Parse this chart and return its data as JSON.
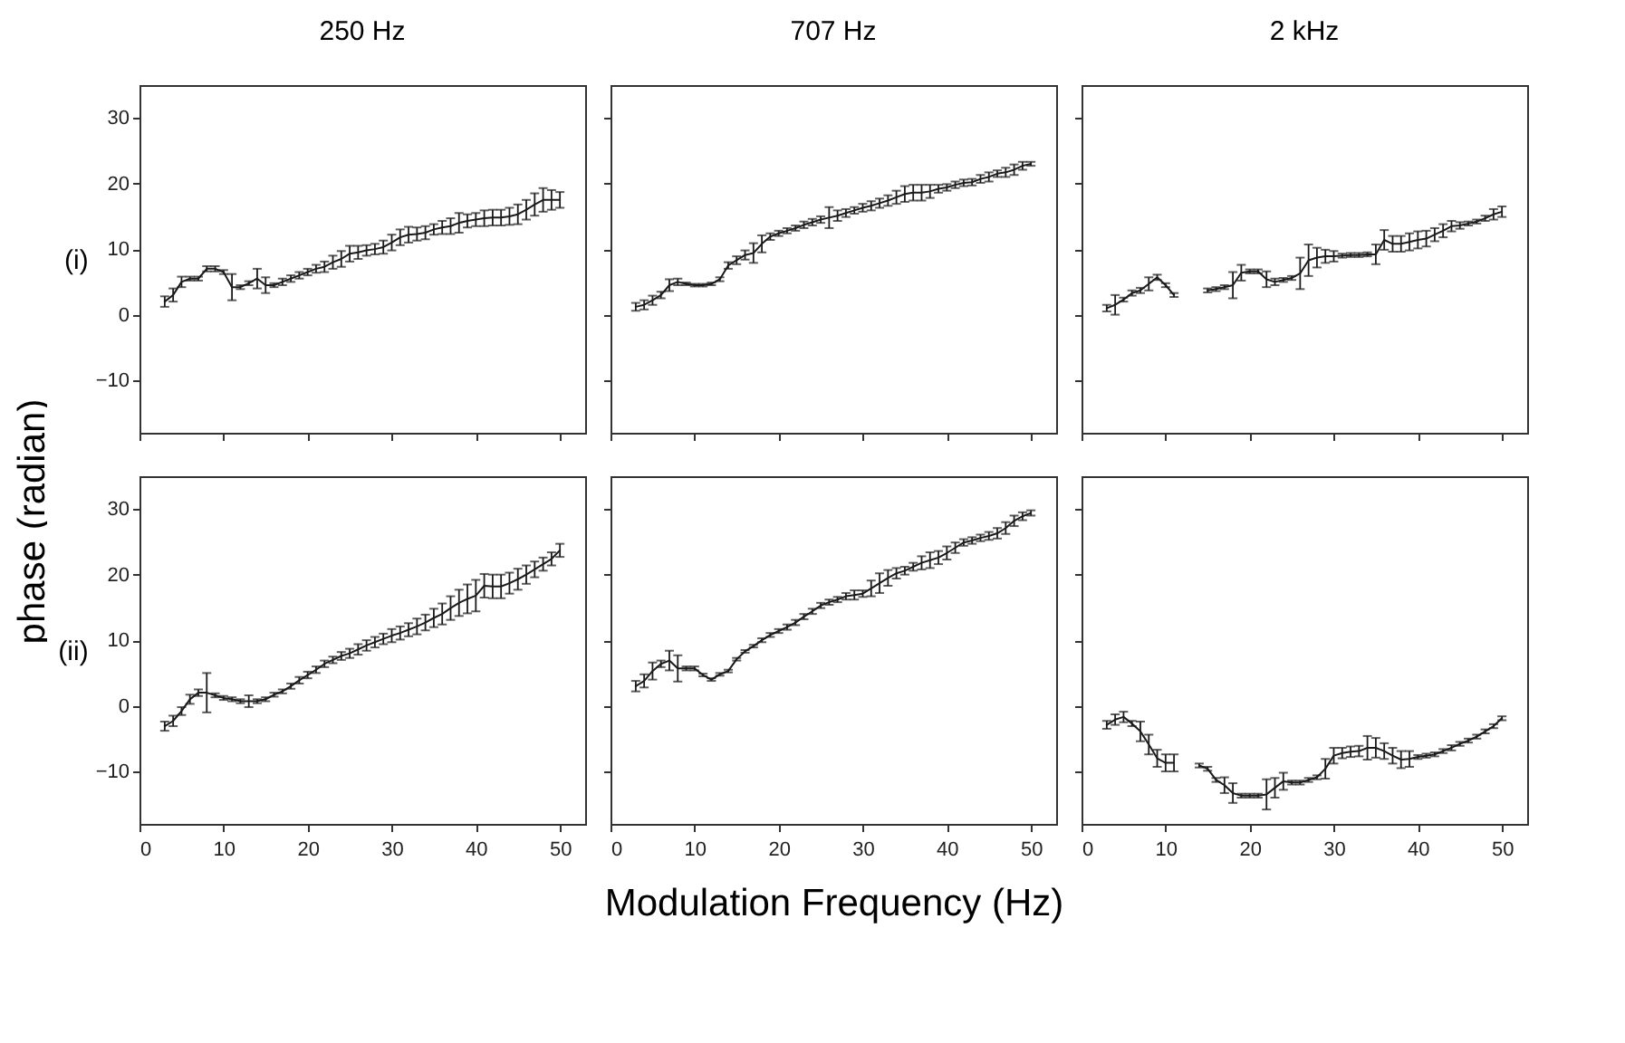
{
  "chart_data": [
    {
      "type": "line",
      "title": "250 Hz",
      "ylabel": "phase (radian)",
      "annotations": [
        "(i)"
      ],
      "color": "#1a1a1a",
      "grid": false,
      "tick_labels": "y",
      "xlim": [
        0,
        53
      ],
      "ylim": [
        -18,
        35
      ],
      "xticks": [
        0,
        10,
        20,
        30,
        40,
        50
      ],
      "yticks": [
        -10,
        0,
        10,
        20,
        30
      ],
      "x": [
        3,
        4,
        5,
        6,
        7,
        8,
        9,
        10,
        11,
        12,
        13,
        14,
        15,
        16,
        17,
        18,
        19,
        20,
        21,
        22,
        23,
        24,
        25,
        26,
        27,
        28,
        29,
        30,
        31,
        32,
        33,
        34,
        35,
        36,
        37,
        38,
        39,
        40,
        41,
        42,
        43,
        44,
        45,
        46,
        47,
        48,
        49,
        50
      ],
      "values": [
        2,
        3,
        5,
        5.5,
        5.5,
        7,
        7,
        6.5,
        4.2,
        4.2,
        4.8,
        5.5,
        4.5,
        4.5,
        5,
        5.5,
        6,
        6.5,
        7,
        7.3,
        8,
        8.5,
        9.3,
        9.5,
        9.8,
        10,
        10.3,
        11,
        11.8,
        12.2,
        12.3,
        12.5,
        13,
        13.3,
        13.5,
        14,
        14.3,
        14.5,
        14.7,
        14.8,
        14.8,
        15,
        15.3,
        16,
        16.8,
        17.5,
        17.5,
        17.5
      ],
      "errors": [
        0.8,
        1,
        0.8,
        0.3,
        0.3,
        0.4,
        0.4,
        0.3,
        2,
        0.3,
        0.3,
        1.5,
        1.2,
        0.3,
        0.5,
        0.5,
        0.5,
        0.5,
        0.6,
        0.8,
        1,
        1.2,
        1.2,
        1,
        0.8,
        0.8,
        1,
        1.2,
        1.2,
        1.2,
        1,
        1,
        0.8,
        1,
        1.2,
        1.5,
        1,
        1,
        1.2,
        1.2,
        1.2,
        1.3,
        1.5,
        1.5,
        1.7,
        1.8,
        1.5,
        1.2
      ]
    },
    {
      "type": "line",
      "title": "707 Hz",
      "color": "#1a1a1a",
      "grid": false,
      "tick_labels": false,
      "xlim": [
        0,
        53
      ],
      "ylim": [
        -18,
        35
      ],
      "xticks": [
        0,
        10,
        20,
        30,
        40,
        50
      ],
      "yticks": [
        -10,
        0,
        10,
        20,
        30
      ],
      "x": [
        3,
        4,
        5,
        6,
        7,
        8,
        9,
        10,
        11,
        12,
        13,
        14,
        15,
        16,
        17,
        18,
        19,
        20,
        21,
        22,
        23,
        24,
        25,
        26,
        27,
        28,
        29,
        30,
        31,
        32,
        33,
        34,
        35,
        36,
        37,
        38,
        39,
        40,
        41,
        42,
        43,
        44,
        45,
        46,
        47,
        48,
        49,
        50
      ],
      "values": [
        1.2,
        1.5,
        2.2,
        3,
        4.5,
        5,
        4.7,
        4.5,
        4.5,
        4.7,
        5.4,
        7.5,
        8.3,
        9.1,
        9.4,
        10.8,
        11.9,
        12.4,
        12.8,
        13.2,
        13.7,
        14.1,
        14.5,
        14.8,
        15.1,
        15.5,
        15.9,
        16.3,
        16.6,
        17,
        17.4,
        17.9,
        18.4,
        18.6,
        18.6,
        18.8,
        19.2,
        19.4,
        19.8,
        20.1,
        20.2,
        20.7,
        21,
        21.5,
        21.7,
        22.1,
        22.7,
        23
      ],
      "errors": [
        0.6,
        0.7,
        0.7,
        0.5,
        0.9,
        0.5,
        0.2,
        0.2,
        0.2,
        0.2,
        0.3,
        0.5,
        0.6,
        0.7,
        1.5,
        1.3,
        0.5,
        0.4,
        0.4,
        0.4,
        0.5,
        0.5,
        0.5,
        1.6,
        0.8,
        0.6,
        0.5,
        0.6,
        0.7,
        0.7,
        0.8,
        1,
        1.2,
        1.2,
        1.2,
        1,
        0.6,
        0.5,
        0.5,
        0.5,
        0.5,
        0.6,
        0.7,
        0.5,
        0.7,
        0.8,
        0.6,
        0.3
      ]
    },
    {
      "type": "line",
      "title": "2 kHz",
      "color": "#1a1a1a",
      "grid": false,
      "tick_labels": false,
      "xlim": [
        0,
        53
      ],
      "ylim": [
        -18,
        35
      ],
      "xticks": [
        0,
        10,
        20,
        30,
        40,
        50
      ],
      "yticks": [
        -10,
        0,
        10,
        20,
        30
      ],
      "x": [
        3,
        4,
        5,
        6,
        7,
        8,
        9,
        10,
        11,
        12,
        13,
        14,
        15,
        16,
        17,
        18,
        19,
        20,
        21,
        22,
        23,
        24,
        25,
        26,
        27,
        28,
        29,
        30,
        31,
        32,
        33,
        34,
        35,
        36,
        37,
        38,
        39,
        40,
        41,
        42,
        43,
        44,
        45,
        46,
        47,
        48,
        49,
        50
      ],
      "values": [
        1,
        1.5,
        2.3,
        3.3,
        3.7,
        4.7,
        5.7,
        4.5,
        3,
        null,
        null,
        null,
        3.7,
        3.9,
        4.2,
        4.5,
        6.4,
        6.6,
        6.6,
        5.4,
        5,
        5.3,
        5.6,
        6.3,
        8.3,
        8.7,
        8.9,
        8.9,
        9,
        9.1,
        9.1,
        9.2,
        9.2,
        11.4,
        10.8,
        10.8,
        11.1,
        11.4,
        11.6,
        12.2,
        12.8,
        13.5,
        13.6,
        13.9,
        14.2,
        14.7,
        15.3,
        15.7
      ],
      "errors": [
        0.5,
        1.5,
        0.3,
        0.4,
        0.4,
        1,
        0.4,
        0.3,
        0.3,
        null,
        null,
        null,
        0.3,
        0.3,
        0.3,
        2,
        1.2,
        0.3,
        0.3,
        1.2,
        0.5,
        0.3,
        0.3,
        2.4,
        2.4,
        1.5,
        1,
        0.8,
        0.3,
        0.3,
        0.3,
        0.3,
        1.5,
        1.5,
        1.2,
        1.2,
        1.3,
        1.3,
        1.2,
        1,
        1,
        0.8,
        0.5,
        0.3,
        0.3,
        0.4,
        0.8,
        0.8
      ]
    },
    {
      "type": "line",
      "annotations": [
        "(ii)"
      ],
      "color": "#1a1a1a",
      "grid": false,
      "xlim": [
        0,
        53
      ],
      "ylim": [
        -18,
        35
      ],
      "xticks": [
        0,
        10,
        20,
        30,
        40,
        50
      ],
      "yticks": [
        -10,
        0,
        10,
        20,
        30
      ],
      "x": [
        3,
        4,
        5,
        6,
        7,
        8,
        9,
        10,
        11,
        12,
        13,
        14,
        15,
        16,
        17,
        18,
        19,
        20,
        21,
        22,
        23,
        24,
        25,
        26,
        27,
        28,
        29,
        30,
        31,
        32,
        33,
        34,
        35,
        36,
        37,
        38,
        39,
        40,
        41,
        42,
        43,
        44,
        45,
        46,
        47,
        48,
        49,
        50
      ],
      "values": [
        -3.1,
        -2.3,
        -0.8,
        1,
        2,
        2,
        1.6,
        1.2,
        1,
        0.7,
        0.7,
        0.7,
        1,
        1.7,
        2.2,
        3,
        3.9,
        4.7,
        5.5,
        6.4,
        7,
        7.6,
        8,
        8.6,
        9.2,
        9.7,
        10.2,
        10.7,
        11.1,
        11.6,
        12.1,
        12.7,
        13.4,
        14,
        14.9,
        15.7,
        16.3,
        16.8,
        18.3,
        18.2,
        18.2,
        18.7,
        19.3,
        20,
        20.8,
        21.6,
        22.4,
        23.7
      ],
      "errors": [
        0.7,
        0.8,
        0.6,
        0.7,
        0.5,
        3,
        0.3,
        0.3,
        0.3,
        0.3,
        0.9,
        0.3,
        0.3,
        0.3,
        0.3,
        0.4,
        0.5,
        0.5,
        0.5,
        0.5,
        0.5,
        0.6,
        0.7,
        0.8,
        0.8,
        0.8,
        0.8,
        1,
        1,
        1,
        1.2,
        1.2,
        1.4,
        1.6,
        1.8,
        2,
        2.2,
        2.4,
        1.8,
        1.8,
        1.8,
        1.6,
        1.6,
        1.4,
        1.2,
        1,
        1,
        1
      ]
    },
    {
      "type": "line",
      "xlabel": "Modulation Frequency (Hz)",
      "color": "#1a1a1a",
      "grid": false,
      "tick_labels": "x",
      "xlim": [
        0,
        53
      ],
      "ylim": [
        -18,
        35
      ],
      "xticks": [
        0,
        10,
        20,
        30,
        40,
        50
      ],
      "yticks": [
        -10,
        0,
        10,
        20,
        30
      ],
      "x": [
        3,
        4,
        5,
        6,
        7,
        8,
        9,
        10,
        11,
        12,
        13,
        14,
        15,
        16,
        17,
        18,
        19,
        20,
        21,
        22,
        23,
        24,
        25,
        26,
        27,
        28,
        29,
        30,
        31,
        32,
        33,
        34,
        35,
        36,
        37,
        38,
        39,
        40,
        41,
        42,
        43,
        44,
        45,
        46,
        47,
        48,
        49,
        50
      ],
      "values": [
        3,
        3.8,
        5.3,
        6.4,
        6.9,
        5.7,
        5.7,
        5.7,
        4.7,
        4,
        4.8,
        5.3,
        7.1,
        8.3,
        9.1,
        10,
        10.8,
        11.4,
        12,
        12.7,
        13.6,
        14.4,
        15.3,
        15.8,
        16.2,
        16.7,
        16.9,
        17.1,
        17.9,
        18.7,
        19.5,
        20.2,
        20.6,
        21.2,
        21.8,
        22.2,
        22.6,
        23.3,
        24.1,
        24.9,
        25.2,
        25.6,
        25.9,
        26.3,
        27.1,
        28.2,
        28.9,
        29.4
      ],
      "errors": [
        0.8,
        1,
        1.3,
        0.5,
        1.5,
        2,
        0.3,
        0.3,
        0.2,
        0.2,
        0.2,
        0.2,
        0.2,
        0.2,
        0.2,
        0.3,
        0.3,
        0.3,
        0.4,
        0.4,
        0.4,
        0.4,
        0.4,
        0.4,
        0.4,
        0.5,
        0.7,
        0.5,
        1.2,
        1.5,
        1.2,
        0.8,
        0.6,
        0.6,
        1,
        1.2,
        1,
        1,
        0.8,
        0.5,
        0.5,
        0.5,
        0.6,
        0.8,
        0.9,
        0.8,
        0.6,
        0.4
      ]
    },
    {
      "type": "line",
      "color": "#1a1a1a",
      "grid": false,
      "tick_labels": "x",
      "xlim": [
        0,
        53
      ],
      "ylim": [
        -18,
        35
      ],
      "xticks": [
        0,
        10,
        20,
        30,
        40,
        50
      ],
      "yticks": [
        -10,
        0,
        10,
        20,
        30
      ],
      "x": [
        3,
        4,
        5,
        6,
        7,
        8,
        9,
        10,
        11,
        12,
        13,
        14,
        15,
        16,
        17,
        18,
        19,
        20,
        21,
        22,
        23,
        24,
        25,
        26,
        27,
        28,
        29,
        30,
        31,
        32,
        33,
        34,
        35,
        36,
        37,
        38,
        39,
        40,
        41,
        42,
        43,
        44,
        45,
        46,
        47,
        48,
        49,
        50
      ],
      "values": [
        -2.9,
        -2.1,
        -1.7,
        -2.7,
        -3.9,
        -5.9,
        -8,
        -8.7,
        -8.7,
        null,
        null,
        -9.1,
        -9.6,
        -11.3,
        -12.1,
        -13.3,
        -13.7,
        -13.7,
        -13.7,
        -13.5,
        -12.5,
        -11.5,
        -11.7,
        -11.7,
        -11.3,
        -10.9,
        -9.6,
        -7.6,
        -7.2,
        -7,
        -6.9,
        -6.4,
        -6.4,
        -6.9,
        -7.6,
        -8.2,
        -8.1,
        -7.8,
        -7.6,
        -7.4,
        -6.9,
        -6.4,
        -5.8,
        -5.3,
        -4.7,
        -3.9,
        -3.1,
        -1.9
      ],
      "errors": [
        0.6,
        0.8,
        0.8,
        0.4,
        1.5,
        1.5,
        1.3,
        1.3,
        1.3,
        null,
        null,
        0.3,
        0.3,
        0.3,
        1.2,
        1.5,
        0.3,
        0.3,
        0.3,
        2.3,
        1.5,
        1.3,
        0.3,
        0.3,
        0.3,
        0.3,
        1.5,
        1.2,
        0.8,
        0.8,
        0.8,
        1.8,
        1.5,
        1.2,
        1.2,
        1.3,
        1.2,
        0.3,
        0.3,
        0.3,
        0.3,
        0.4,
        0.3,
        0.3,
        0.3,
        0.3,
        0.3,
        0.3
      ]
    }
  ]
}
